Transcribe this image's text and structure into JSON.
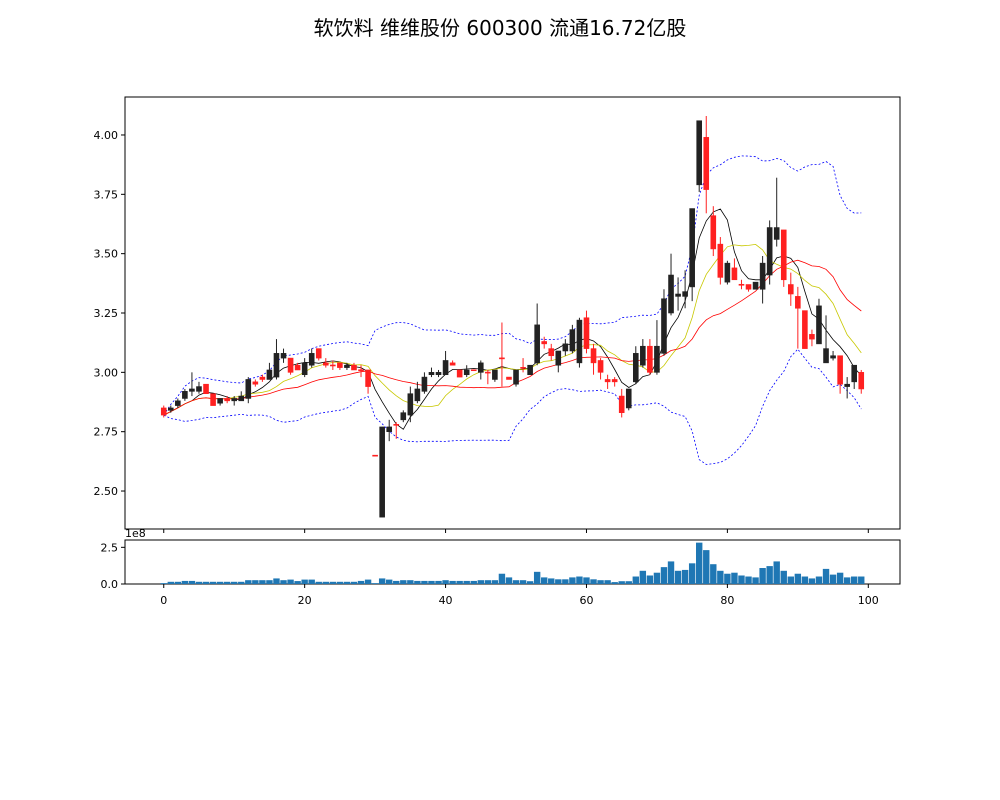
{
  "chart_data": {
    "type": "candlestick",
    "title": "软饮料 维维股份 600300 流通16.72亿股",
    "x": "index 0-99",
    "xlim": [
      -5.5,
      104.5
    ],
    "x_ticks": [
      "0",
      "20",
      "40",
      "60",
      "80",
      "100"
    ],
    "price": {
      "ylim": [
        2.34,
        4.16
      ],
      "y_ticks": [
        "2.50",
        "2.75",
        "3.00",
        "3.25",
        "3.50",
        "3.75",
        "4.00"
      ],
      "ohlc": [
        [
          2.85,
          2.86,
          2.81,
          2.82
        ],
        [
          2.84,
          2.86,
          2.83,
          2.85
        ],
        [
          2.86,
          2.89,
          2.85,
          2.88
        ],
        [
          2.89,
          2.93,
          2.88,
          2.92
        ],
        [
          2.92,
          3.0,
          2.9,
          2.93
        ],
        [
          2.92,
          2.96,
          2.91,
          2.94
        ],
        [
          2.95,
          2.95,
          2.91,
          2.91
        ],
        [
          2.91,
          2.91,
          2.86,
          2.86
        ],
        [
          2.87,
          2.89,
          2.86,
          2.89
        ],
        [
          2.89,
          2.9,
          2.87,
          2.88
        ],
        [
          2.88,
          2.9,
          2.86,
          2.89
        ],
        [
          2.88,
          2.92,
          2.88,
          2.9
        ],
        [
          2.89,
          2.98,
          2.87,
          2.97
        ],
        [
          2.96,
          2.97,
          2.94,
          2.95
        ],
        [
          2.98,
          2.99,
          2.96,
          2.97
        ],
        [
          2.97,
          3.04,
          2.97,
          3.01
        ],
        [
          2.98,
          3.14,
          2.97,
          3.08
        ],
        [
          3.06,
          3.1,
          3.04,
          3.08
        ],
        [
          3.06,
          3.06,
          2.99,
          3.0
        ],
        [
          3.03,
          3.04,
          3.01,
          3.01
        ],
        [
          2.99,
          3.06,
          2.98,
          3.04
        ],
        [
          3.03,
          3.1,
          3.02,
          3.08
        ],
        [
          3.1,
          3.1,
          3.05,
          3.06
        ],
        [
          3.04,
          3.06,
          3.02,
          3.03
        ],
        [
          3.031,
          3.05,
          3.01,
          3.03
        ],
        [
          3.04,
          3.04,
          3.01,
          3.02
        ],
        [
          3.02,
          3.04,
          3.01,
          3.03
        ],
        [
          3.03,
          3.04,
          3.01,
          3.01
        ],
        [
          3.011,
          3.03,
          2.98,
          3.01
        ],
        [
          3.01,
          3.01,
          2.91,
          2.94
        ],
        [
          2.651,
          2.65,
          2.65,
          2.65
        ],
        [
          2.39,
          2.77,
          2.39,
          2.77
        ],
        [
          2.75,
          2.8,
          2.71,
          2.77
        ],
        [
          2.781,
          2.79,
          2.72,
          2.78
        ],
        [
          2.8,
          2.84,
          2.79,
          2.83
        ],
        [
          2.82,
          2.94,
          2.79,
          2.91
        ],
        [
          2.88,
          2.96,
          2.87,
          2.93
        ],
        [
          2.92,
          3.0,
          2.91,
          2.98
        ],
        [
          2.99,
          3.02,
          2.98,
          3.0
        ],
        [
          2.99,
          3.01,
          2.98,
          3.0
        ],
        [
          2.99,
          3.09,
          2.99,
          3.05
        ],
        [
          3.04,
          3.05,
          3.03,
          3.03
        ],
        [
          3.01,
          3.01,
          2.98,
          2.98
        ],
        [
          2.99,
          3.03,
          2.98,
          3.01
        ],
        [
          3.011,
          3.01,
          3.01,
          3.01
        ],
        [
          3.0,
          3.05,
          2.97,
          3.04
        ],
        [
          3.001,
          3.01,
          2.95,
          3.0
        ],
        [
          2.97,
          3.01,
          2.96,
          3.01
        ],
        [
          3.061,
          3.21,
          2.94,
          3.06
        ],
        [
          2.98,
          2.98,
          2.97,
          2.97
        ],
        [
          2.95,
          3.01,
          2.94,
          3.01
        ],
        [
          3.021,
          3.06,
          3.0,
          3.02
        ],
        [
          2.99,
          3.03,
          2.99,
          3.03
        ],
        [
          3.04,
          3.29,
          3.03,
          3.2
        ],
        [
          3.13,
          3.15,
          3.1,
          3.12
        ],
        [
          3.1,
          3.12,
          3.05,
          3.07
        ],
        [
          3.03,
          3.09,
          3.0,
          3.09
        ],
        [
          3.09,
          3.14,
          3.07,
          3.12
        ],
        [
          3.09,
          3.2,
          3.08,
          3.18
        ],
        [
          3.04,
          3.23,
          3.02,
          3.22
        ],
        [
          3.23,
          3.26,
          3.08,
          3.1
        ],
        [
          3.1,
          3.12,
          2.99,
          3.04
        ],
        [
          3.05,
          3.06,
          2.97,
          3.0
        ],
        [
          2.97,
          2.99,
          2.93,
          2.96
        ],
        [
          2.97,
          2.98,
          2.94,
          2.96
        ],
        [
          2.9,
          2.93,
          2.81,
          2.83
        ],
        [
          2.85,
          2.93,
          2.84,
          2.93
        ],
        [
          2.96,
          3.11,
          2.95,
          3.08
        ],
        [
          3.03,
          3.14,
          3.02,
          3.11
        ],
        [
          3.11,
          3.14,
          2.99,
          3.0
        ],
        [
          3.0,
          3.22,
          2.99,
          3.11
        ],
        [
          3.08,
          3.35,
          3.07,
          3.31
        ],
        [
          3.25,
          3.5,
          3.24,
          3.41
        ],
        [
          3.32,
          3.4,
          3.26,
          3.33
        ],
        [
          3.32,
          3.43,
          3.27,
          3.34
        ],
        [
          3.36,
          3.69,
          3.3,
          3.69
        ],
        [
          3.79,
          4.06,
          3.76,
          4.06
        ],
        [
          3.99,
          4.08,
          3.67,
          3.77
        ],
        [
          3.66,
          3.7,
          3.49,
          3.52
        ],
        [
          3.54,
          3.57,
          3.37,
          3.4
        ],
        [
          3.38,
          3.47,
          3.37,
          3.46
        ],
        [
          3.44,
          3.48,
          3.39,
          3.39
        ],
        [
          3.371,
          3.39,
          3.35,
          3.37
        ],
        [
          3.37,
          3.37,
          3.34,
          3.35
        ],
        [
          3.35,
          3.38,
          3.35,
          3.38
        ],
        [
          3.35,
          3.49,
          3.29,
          3.46
        ],
        [
          3.41,
          3.64,
          3.37,
          3.61
        ],
        [
          3.56,
          3.82,
          3.53,
          3.61
        ],
        [
          3.6,
          3.6,
          3.36,
          3.39
        ],
        [
          3.37,
          3.42,
          3.28,
          3.33
        ],
        [
          3.32,
          3.36,
          3.1,
          3.27
        ],
        [
          3.26,
          3.26,
          3.1,
          3.1
        ],
        [
          3.16,
          3.18,
          3.11,
          3.14
        ],
        [
          3.12,
          3.31,
          3.12,
          3.28
        ],
        [
          3.04,
          3.24,
          3.04,
          3.1
        ],
        [
          3.06,
          3.09,
          3.05,
          3.07
        ],
        [
          3.07,
          3.07,
          2.91,
          2.95
        ],
        [
          2.94,
          2.98,
          2.89,
          2.95
        ],
        [
          2.96,
          3.02,
          2.93,
          3.03
        ],
        [
          3.0,
          3.01,
          2.91,
          2.93
        ]
      ],
      "up_color": "#222222",
      "down_color": "#ff2020",
      "overlays": [
        {
          "name": "MA5",
          "window": 5,
          "color": "#000000"
        },
        {
          "name": "MA10",
          "window": 10,
          "color": "#c8c800"
        },
        {
          "name": "MA20",
          "window": 20,
          "color": "#ff0000"
        },
        {
          "name": "BOLL",
          "window": 20,
          "k": 2,
          "color": "#0000ff",
          "style": "dashed"
        }
      ]
    },
    "volume": {
      "ylim": [
        0,
        3.0
      ],
      "y_ticks": [
        "0.0",
        "2.5"
      ],
      "offset_label": "1e8",
      "unit": 100000000,
      "color": "#1f77b4",
      "values": [
        0.06,
        0.15,
        0.15,
        0.21,
        0.21,
        0.15,
        0.15,
        0.15,
        0.15,
        0.15,
        0.15,
        0.15,
        0.26,
        0.26,
        0.26,
        0.26,
        0.38,
        0.26,
        0.3,
        0.2,
        0.3,
        0.3,
        0.15,
        0.15,
        0.15,
        0.15,
        0.15,
        0.15,
        0.21,
        0.3,
        0.06,
        0.38,
        0.3,
        0.21,
        0.26,
        0.26,
        0.21,
        0.21,
        0.21,
        0.21,
        0.26,
        0.21,
        0.21,
        0.21,
        0.21,
        0.26,
        0.26,
        0.26,
        0.7,
        0.45,
        0.26,
        0.26,
        0.19,
        0.83,
        0.45,
        0.38,
        0.32,
        0.32,
        0.45,
        0.51,
        0.45,
        0.32,
        0.26,
        0.26,
        0.13,
        0.19,
        0.19,
        0.51,
        0.9,
        0.58,
        0.77,
        1.15,
        1.54,
        0.9,
        0.96,
        1.41,
        2.82,
        2.31,
        1.35,
        0.9,
        0.7,
        0.77,
        0.58,
        0.51,
        0.45,
        1.09,
        1.22,
        1.54,
        0.9,
        0.51,
        0.7,
        0.51,
        0.38,
        0.51,
        1.03,
        0.64,
        0.77,
        0.45,
        0.51,
        0.51
      ]
    }
  }
}
